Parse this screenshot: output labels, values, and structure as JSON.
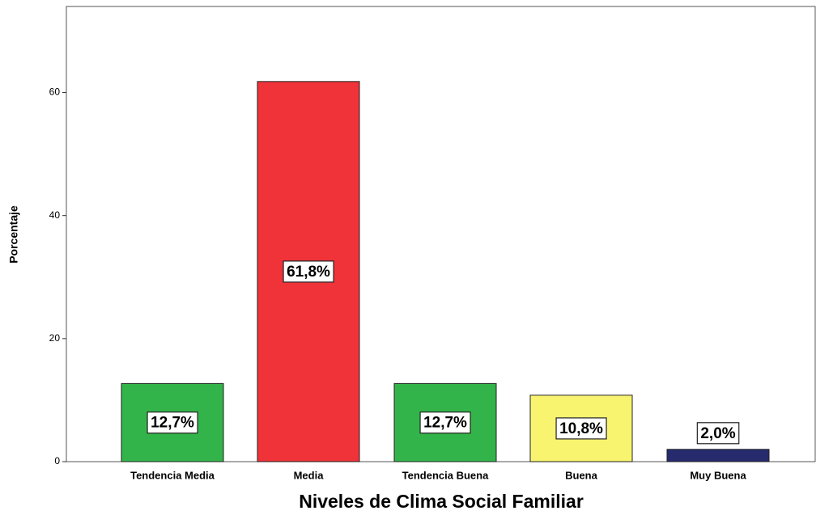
{
  "chart_data": {
    "type": "bar",
    "x_label": "Niveles de Clima Social Familiar",
    "y_label": "Porcentaje",
    "categories": [
      "Tendencia Media",
      "Media",
      "Tendencia Buena",
      "Buena",
      "Muy Buena"
    ],
    "values": [
      12.7,
      61.8,
      12.7,
      10.8,
      2.0
    ],
    "value_labels": [
      "12,7%",
      "61,8%",
      "12,7%",
      "10,8%",
      "2,0%"
    ],
    "colors": [
      "#33b44a",
      "#ef3339",
      "#33b44a",
      "#f8f46f",
      "#262b6e"
    ],
    "ylim": [
      0,
      74
    ],
    "yticks": [
      0,
      20,
      40,
      60
    ],
    "grid": false
  }
}
